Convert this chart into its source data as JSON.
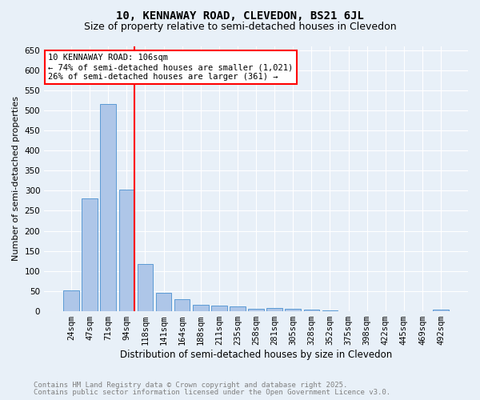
{
  "title1": "10, KENNAWAY ROAD, CLEVEDON, BS21 6JL",
  "title2": "Size of property relative to semi-detached houses in Clevedon",
  "xlabel": "Distribution of semi-detached houses by size in Clevedon",
  "ylabel": "Number of semi-detached properties",
  "categories": [
    "24sqm",
    "47sqm",
    "71sqm",
    "94sqm",
    "118sqm",
    "141sqm",
    "164sqm",
    "188sqm",
    "211sqm",
    "235sqm",
    "258sqm",
    "281sqm",
    "305sqm",
    "328sqm",
    "352sqm",
    "375sqm",
    "398sqm",
    "422sqm",
    "445sqm",
    "469sqm",
    "492sqm"
  ],
  "values": [
    52,
    280,
    515,
    302,
    118,
    45,
    31,
    17,
    14,
    12,
    7,
    8,
    7,
    4,
    3,
    1,
    0,
    0,
    0,
    0,
    4
  ],
  "bar_color": "#aec6e8",
  "bar_edge_color": "#5b9bd5",
  "red_line_bin": 3,
  "annotation_line1": "10 KENNAWAY ROAD: 106sqm",
  "annotation_line2": "← 74% of semi-detached houses are smaller (1,021)",
  "annotation_line3": "26% of semi-detached houses are larger (361) →",
  "annotation_box_color": "white",
  "annotation_box_edge": "red",
  "ylim": [
    0,
    660
  ],
  "yticks": [
    0,
    50,
    100,
    150,
    200,
    250,
    300,
    350,
    400,
    450,
    500,
    550,
    600,
    650
  ],
  "footer1": "Contains HM Land Registry data © Crown copyright and database right 2025.",
  "footer2": "Contains public sector information licensed under the Open Government Licence v3.0.",
  "background_color": "#e8f0f8",
  "grid_color": "white",
  "title1_fontsize": 10,
  "title2_fontsize": 9,
  "xlabel_fontsize": 8.5,
  "ylabel_fontsize": 8,
  "tick_fontsize": 7.5,
  "footer_fontsize": 6.5,
  "annotation_fontsize": 7.5
}
